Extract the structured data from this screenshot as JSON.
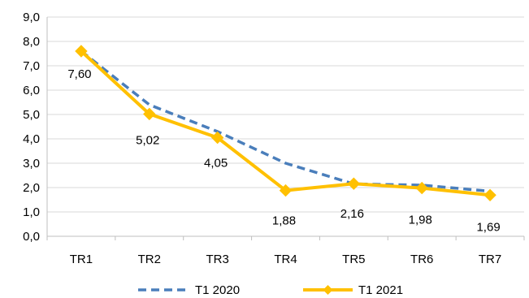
{
  "chart_data": {
    "type": "line",
    "categories": [
      "TR1",
      "TR2",
      "TR3",
      "TR4",
      "TR5",
      "TR6",
      "TR7"
    ],
    "series": [
      {
        "name": "T1 2020",
        "values": [
          7.6,
          5.4,
          4.3,
          3.0,
          2.15,
          2.1,
          1.85
        ],
        "color": "#4a7ebb",
        "line_style": "dashed",
        "labels": []
      },
      {
        "name": "T1 2021",
        "values": [
          7.6,
          5.02,
          4.05,
          1.88,
          2.16,
          1.98,
          1.69
        ],
        "color": "#ffc000",
        "line_style": "solid",
        "marker": "diamond",
        "labels": [
          "7,60",
          "5,02",
          "4,05",
          "1,88",
          "2,16",
          "1,98",
          "1,69"
        ]
      }
    ],
    "ylim": [
      0,
      9
    ],
    "ytick_labels": [
      "0,0",
      "1,0",
      "2,0",
      "3,0",
      "4,0",
      "5,0",
      "6,0",
      "7,0",
      "8,0",
      "9,0"
    ],
    "grid": true,
    "legend_position": "bottom",
    "title": "",
    "xlabel": "",
    "ylabel": ""
  }
}
